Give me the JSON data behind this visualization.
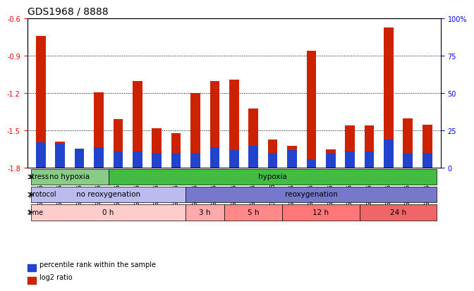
{
  "title": "GDS1968 / 8888",
  "samples": [
    "GSM16836",
    "GSM16837",
    "GSM16838",
    "GSM16839",
    "GSM16784",
    "GSM16814",
    "GSM16815",
    "GSM16816",
    "GSM16817",
    "GSM16818",
    "GSM16819",
    "GSM16821",
    "GSM16824",
    "GSM16826",
    "GSM16828",
    "GSM16830",
    "GSM16831",
    "GSM16832",
    "GSM16833",
    "GSM16834",
    "GSM16835"
  ],
  "log2_ratio": [
    -0.74,
    -1.59,
    -1.72,
    -1.19,
    -1.41,
    -1.1,
    -1.48,
    -1.52,
    -1.2,
    -1.1,
    -1.09,
    -1.32,
    -1.57,
    -1.62,
    -0.86,
    -1.65,
    -1.46,
    -1.46,
    -0.67,
    -1.4,
    -1.45
  ],
  "percentile": [
    17,
    16,
    13,
    14,
    11,
    11,
    10,
    10,
    10,
    14,
    12,
    15,
    10,
    12,
    6,
    10,
    11,
    11,
    19,
    10,
    10
  ],
  "ylim_left": [
    -1.8,
    -0.6
  ],
  "yticks_left": [
    -1.8,
    -1.5,
    -1.2,
    -0.9,
    -0.6
  ],
  "ylim_right": [
    0,
    100
  ],
  "yticks_right": [
    0,
    25,
    50,
    75,
    100
  ],
  "yticklabels_right": [
    "0",
    "25",
    "50",
    "75",
    "100%"
  ],
  "bar_color": "#cc2200",
  "percentile_color": "#2244cc",
  "background_color": "#ffffff",
  "stress_groups": [
    {
      "label": "no hypoxia",
      "start": 0,
      "end": 4,
      "color": "#88cc88"
    },
    {
      "label": "hypoxia",
      "start": 4,
      "end": 21,
      "color": "#44bb44"
    }
  ],
  "protocol_groups": [
    {
      "label": "no reoxygenation",
      "start": 0,
      "end": 8,
      "color": "#bbbbee"
    },
    {
      "label": "reoxygenation",
      "start": 8,
      "end": 21,
      "color": "#7777cc"
    }
  ],
  "time_groups": [
    {
      "label": "0 h",
      "start": 0,
      "end": 8,
      "color": "#ffcccc"
    },
    {
      "label": "3 h",
      "start": 8,
      "end": 10,
      "color": "#ffaaaa"
    },
    {
      "label": "5 h",
      "start": 10,
      "end": 13,
      "color": "#ff8888"
    },
    {
      "label": "12 h",
      "start": 13,
      "end": 17,
      "color": "#ff7777"
    },
    {
      "label": "24 h",
      "start": 17,
      "end": 21,
      "color": "#ee6666"
    }
  ],
  "row_labels": [
    "stress",
    "protocol",
    "time"
  ],
  "legend": [
    {
      "label": "log2 ratio",
      "color": "#cc2200"
    },
    {
      "label": "percentile rank within the sample",
      "color": "#2244cc"
    }
  ]
}
